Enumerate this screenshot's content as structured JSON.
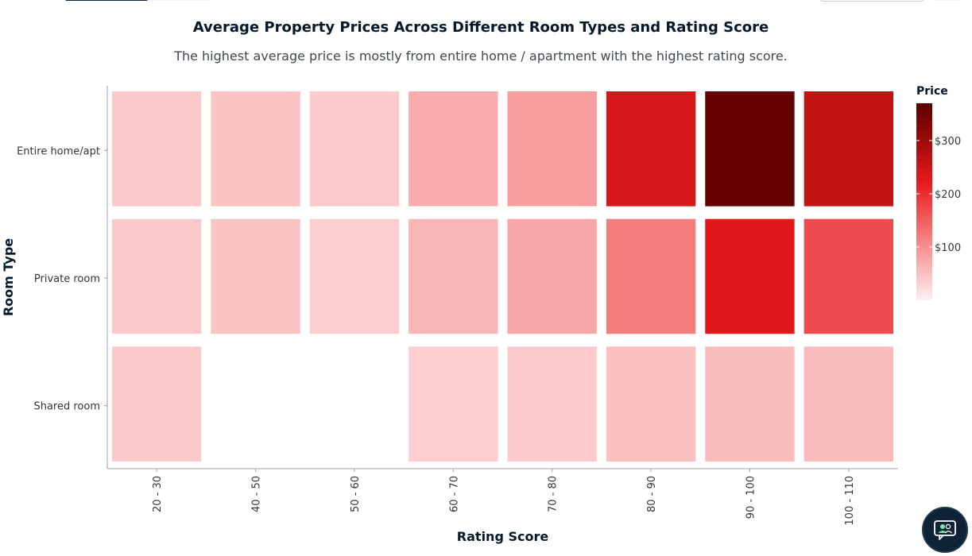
{
  "chart_data": {
    "type": "heatmap",
    "title": "Average Property Prices Across Different Room Types and Rating Score",
    "subtitle": "The highest average price is mostly from entire home / apartment with the highest rating score.",
    "xlabel": "Rating Score",
    "ylabel": "Room Type",
    "x_categories": [
      "20 - 30",
      "40 - 50",
      "50 - 60",
      "60 - 70",
      "70 - 80",
      "80 - 90",
      "90 - 100",
      "100 - 110"
    ],
    "y_categories": [
      "Entire home/apt",
      "Private room",
      "Shared room"
    ],
    "values": [
      [
        40,
        45,
        38,
        70,
        85,
        240,
        360,
        260
      ],
      [
        40,
        45,
        35,
        60,
        75,
        120,
        230,
        170
      ],
      [
        40,
        null,
        null,
        35,
        38,
        50,
        55,
        55
      ]
    ],
    "legend": {
      "title": "Price",
      "ticks": [
        100,
        200,
        300
      ],
      "tick_labels": [
        "$100",
        "$200",
        "$300"
      ],
      "min": 0,
      "max": 370
    },
    "colors": {
      "low": "#fff0f0",
      "mid": "#e8191c",
      "high": "#5c0000"
    }
  }
}
